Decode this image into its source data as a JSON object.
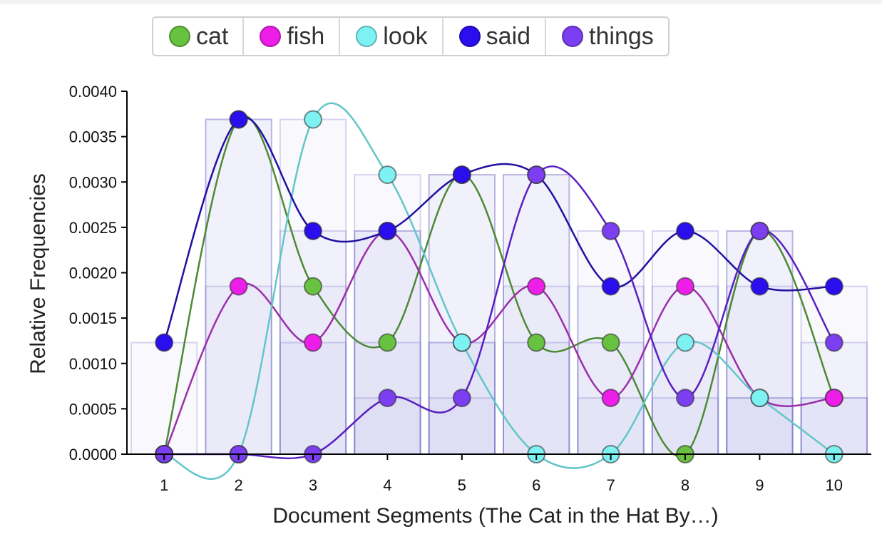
{
  "chart_data": {
    "type": "line",
    "title": "",
    "xlabel": "Document Segments (The Cat in the Hat By…)",
    "ylabel": "Relative Frequencies",
    "categories": [
      "1",
      "2",
      "3",
      "4",
      "5",
      "6",
      "7",
      "8",
      "9",
      "10"
    ],
    "ylim": [
      0,
      0.004
    ],
    "yticks": [
      "0.0000",
      "0.0005",
      "0.0010",
      "0.0015",
      "0.0020",
      "0.0025",
      "0.0030",
      "0.0035",
      "0.0040"
    ],
    "legend_position": "top-center",
    "series": [
      {
        "name": "cat",
        "color": "#66c23f",
        "line_color": "#4d8a35",
        "values": [
          0.0,
          0.00369,
          0.00185,
          0.00123,
          0.00308,
          0.00123,
          0.00123,
          0.0,
          0.00246,
          0.00062
        ]
      },
      {
        "name": "fish",
        "color": "#ec1ee8",
        "line_color": "#9a2fa9",
        "values": [
          0.0,
          0.00185,
          0.00123,
          0.00246,
          0.00123,
          0.00185,
          0.00062,
          0.00185,
          0.00062,
          0.00062
        ]
      },
      {
        "name": "look",
        "color": "#7ef1f2",
        "line_color": "#63c6c8",
        "values": [
          0.0,
          0.0,
          0.00369,
          0.00308,
          0.00123,
          0.0,
          0.0,
          0.00123,
          0.00062,
          0.0
        ]
      },
      {
        "name": "said",
        "color": "#2a0eee",
        "line_color": "#2010a0",
        "values": [
          0.00123,
          0.00369,
          0.00246,
          0.00246,
          0.00308,
          0.00308,
          0.00185,
          0.00246,
          0.00185,
          0.00185
        ]
      },
      {
        "name": "things",
        "color": "#7b3ef0",
        "line_color": "#5a1fc0",
        "values": [
          0.0,
          0.0,
          0.0,
          0.00062,
          0.00062,
          0.00308,
          0.00246,
          0.00062,
          0.00246,
          0.00123
        ]
      }
    ]
  }
}
